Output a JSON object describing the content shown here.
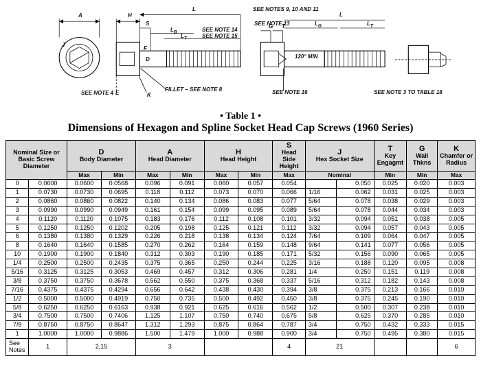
{
  "diagram": {
    "dim_letters": {
      "A": "A",
      "H": "H",
      "L": "L",
      "S": "S",
      "LB": "L_B",
      "LT": "L_T",
      "LG": "L_G",
      "G": "G",
      "T": "T",
      "J": "J",
      "D": "D",
      "F": "F",
      "E": "E",
      "K": "K",
      "angle": "120°",
      "angle_suffix": "MIN"
    },
    "notes": {
      "top_right": "SEE NOTES 9, 10 AND 11",
      "note13": "SEE NOTE 13",
      "note14": "SEE NOTE 14",
      "note15": "SEE NOTE 15",
      "note16": "SEE NOTE 16",
      "note4_left": "SEE NOTE 4",
      "fillet": "FILLET – SEE NOTE 8",
      "note3_right": "SEE NOTE 3 TO TABLE 18"
    }
  },
  "caption": {
    "tline": "• Table 1 •",
    "subtitle": "Dimensions of Hexagon and Spline Socket Head Cap Screws (1960 Series)"
  },
  "header": {
    "nominal": "Nominal Size or Basic Screw Diameter",
    "D": {
      "letter": "D",
      "label": "Body Diameter"
    },
    "A": {
      "letter": "A",
      "label": "Head Diameter"
    },
    "H": {
      "letter": "H",
      "label": "Head Height"
    },
    "S": {
      "letter": "S",
      "label": "Head Side Height"
    },
    "J": {
      "letter": "J",
      "label": "Hex Socket Size"
    },
    "T": {
      "letter": "T",
      "label": "Key Engagmt"
    },
    "G": {
      "letter": "G",
      "label": "Wall Thkns"
    },
    "K": {
      "letter": "K",
      "label": "Chamfer or Radius"
    },
    "sub": {
      "Max": "Max",
      "Min": "Min",
      "Nominal": "Nominal"
    }
  },
  "rows": [
    {
      "n": "0",
      "bd": "0.0600",
      "Dmax": "0.0600",
      "Dmin": "0.0568",
      "Amax": "0.096",
      "Amin": "0.091",
      "Hmax": "0.060",
      "Hmin": "0.057",
      "Smax": "0.054",
      "JnomF": "",
      "Jnom": "0.050",
      "Tmin": "0.025",
      "Gmin": "0.020",
      "Kmax": "0.003"
    },
    {
      "n": "1",
      "bd": "0.0730",
      "Dmax": "0.0730",
      "Dmin": "0.0695",
      "Amax": "0.118",
      "Amin": "0.112",
      "Hmax": "0.073",
      "Hmin": "0.070",
      "Smax": "0.066",
      "JnomF": "1/16",
      "Jnom": "0.062",
      "Tmin": "0.031",
      "Gmin": "0.025",
      "Kmax": "0.003"
    },
    {
      "n": "2",
      "bd": "0.0860",
      "Dmax": "0.0860",
      "Dmin": "0.0822",
      "Amax": "0.140",
      "Amin": "0.134",
      "Hmax": "0.086",
      "Hmin": "0.083",
      "Smax": "0.077",
      "JnomF": "5/64",
      "Jnom": "0.078",
      "Tmin": "0.038",
      "Gmin": "0.029",
      "Kmax": "0.003"
    },
    {
      "n": "3",
      "bd": "0.0990",
      "Dmax": "0.0990",
      "Dmin": "0.0949",
      "Amax": "0.161",
      "Amin": "0.154",
      "Hmax": "0.099",
      "Hmin": "0.095",
      "Smax": "0.089",
      "JnomF": "5/64",
      "Jnom": "0.078",
      "Tmin": "0.044",
      "Gmin": "0.034",
      "Kmax": "0.003"
    },
    {
      "n": "4",
      "bd": "0.1120",
      "Dmax": "0.1120",
      "Dmin": "0.1075",
      "Amax": "0.183",
      "Amin": "0.176",
      "Hmax": "0.112",
      "Hmin": "0.108",
      "Smax": "0.101",
      "JnomF": "3/32",
      "Jnom": "0.094",
      "Tmin": "0.051",
      "Gmin": "0.038",
      "Kmax": "0.005"
    },
    {
      "n": "5",
      "bd": "0.1250",
      "Dmax": "0.1250",
      "Dmin": "0.1202",
      "Amax": "0.205",
      "Amin": "0.198",
      "Hmax": "0.125",
      "Hmin": "0.121",
      "Smax": "0.112",
      "JnomF": "3/32",
      "Jnom": "0.094",
      "Tmin": "0.057",
      "Gmin": "0.043",
      "Kmax": "0.005"
    },
    {
      "n": "6",
      "bd": "0.1380",
      "Dmax": "0.1380",
      "Dmin": "0.1329",
      "Amax": "0.226",
      "Amin": "0.218",
      "Hmax": "0.138",
      "Hmin": "0.134",
      "Smax": "0.124",
      "JnomF": "7/64",
      "Jnom": "0.109",
      "Tmin": "0.064",
      "Gmin": "0.047",
      "Kmax": "0.005"
    },
    {
      "n": "8",
      "bd": "0.1640",
      "Dmax": "0.1640",
      "Dmin": "0.1585",
      "Amax": "0.270",
      "Amin": "0.262",
      "Hmax": "0.164",
      "Hmin": "0.159",
      "Smax": "0.148",
      "JnomF": "9/64",
      "Jnom": "0.141",
      "Tmin": "0.077",
      "Gmin": "0.056",
      "Kmax": "0.005"
    },
    {
      "n": "10",
      "bd": "0.1900",
      "Dmax": "0.1900",
      "Dmin": "0.1840",
      "Amax": "0.312",
      "Amin": "0.303",
      "Hmax": "0.190",
      "Hmin": "0.185",
      "Smax": "0.171",
      "JnomF": "5/32",
      "Jnom": "0.156",
      "Tmin": "0.090",
      "Gmin": "0.065",
      "Kmax": "0.005"
    },
    {
      "n": "1/4",
      "bd": "0.2500",
      "Dmax": "0.2500",
      "Dmin": "0.2435",
      "Amax": "0.375",
      "Amin": "0.365",
      "Hmax": "0.250",
      "Hmin": "0.244",
      "Smax": "0.225",
      "JnomF": "3/16",
      "Jnom": "0.188",
      "Tmin": "0.120",
      "Gmin": "0.095",
      "Kmax": "0.008"
    },
    {
      "n": "5/16",
      "bd": "0.3125",
      "Dmax": "0.3125",
      "Dmin": "0.3053",
      "Amax": "0.469",
      "Amin": "0.457",
      "Hmax": "0.312",
      "Hmin": "0.306",
      "Smax": "0.281",
      "JnomF": "1/4",
      "Jnom": "0.250",
      "Tmin": "0.151",
      "Gmin": "0.119",
      "Kmax": "0.008"
    },
    {
      "n": "3/8",
      "bd": "0.3750",
      "Dmax": "0.3750",
      "Dmin": "0.3678",
      "Amax": "0.562",
      "Amin": "0.550",
      "Hmax": "0.375",
      "Hmin": "0.368",
      "Smax": "0.337",
      "JnomF": "5/16",
      "Jnom": "0.312",
      "Tmin": "0.182",
      "Gmin": "0.143",
      "Kmax": "0.008"
    },
    {
      "n": "7/16",
      "bd": "0.4375",
      "Dmax": "0.4375",
      "Dmin": "0.4294",
      "Amax": "0.656",
      "Amin": "0.642",
      "Hmax": "0.438",
      "Hmin": "0.430",
      "Smax": "0.394",
      "JnomF": "3/8",
      "Jnom": "0.375",
      "Tmin": "0.213",
      "Gmin": "0.166",
      "Kmax": "0.010"
    },
    {
      "n": "1/2",
      "bd": "0.5000",
      "Dmax": "0.5000",
      "Dmin": "0.4919",
      "Amax": "0.750",
      "Amin": "0.735",
      "Hmax": "0.500",
      "Hmin": "0.492",
      "Smax": "0.450",
      "JnomF": "3/8",
      "Jnom": "0.375",
      "Tmin": "0.245",
      "Gmin": "0.190",
      "Kmax": "0.010"
    },
    {
      "n": "5/8",
      "bd": "0.6250",
      "Dmax": "0.6250",
      "Dmin": "0.6163",
      "Amax": "0.938",
      "Amin": "0.921",
      "Hmax": "0.625",
      "Hmin": "0.616",
      "Smax": "0.562",
      "JnomF": "1/2",
      "Jnom": "0.500",
      "Tmin": "0.307",
      "Gmin": "0.238",
      "Kmax": "0.010"
    },
    {
      "n": "3/4",
      "bd": "0.7500",
      "Dmax": "0.7500",
      "Dmin": "0.7406",
      "Amax": "1.125",
      "Amin": "1.107",
      "Hmax": "0.750",
      "Hmin": "0.740",
      "Smax": "0.675",
      "JnomF": "5/8",
      "Jnom": "0.625",
      "Tmin": "0.370",
      "Gmin": "0.285",
      "Kmax": "0.010"
    },
    {
      "n": "7/8",
      "bd": "0.8750",
      "Dmax": "0.8750",
      "Dmin": "0.8647",
      "Amax": "1.312",
      "Amin": "1.293",
      "Hmax": "0.875",
      "Hmin": "0.864",
      "Smax": "0.787",
      "JnomF": "3/4",
      "Jnom": "0.750",
      "Tmin": "0.432",
      "Gmin": "0.333",
      "Kmax": "0.015"
    },
    {
      "n": "1",
      "bd": "1.0000",
      "Dmax": "1.0000",
      "Dmin": "0.9886",
      "Amax": "1.500",
      "Amin": "1.479",
      "Hmax": "1.000",
      "Hmin": "0.988",
      "Smax": "0.900",
      "JnomF": "3/4",
      "Jnom": "0.750",
      "Tmin": "0.495",
      "Gmin": "0.380",
      "Kmax": "0.015"
    }
  ],
  "seenotes": {
    "label": "See Notes",
    "col_nominal": "1",
    "col_D": "2,15",
    "col_A": "3",
    "col_H": "",
    "col_S": "4",
    "col_J": "21",
    "col_T": "",
    "col_G": "",
    "col_K": "6"
  },
  "colwidths": {
    "nominal_n": 28,
    "nominal_bd": 47,
    "Dmax": 42,
    "Dmin": 42,
    "Amax": 42,
    "Amin": 42,
    "Hmax": 42,
    "Hmin": 42,
    "Smax": 40,
    "JnomF": 38,
    "Jnom": 46,
    "Tmin": 40,
    "Gmin": 38,
    "Kmax": 46
  }
}
